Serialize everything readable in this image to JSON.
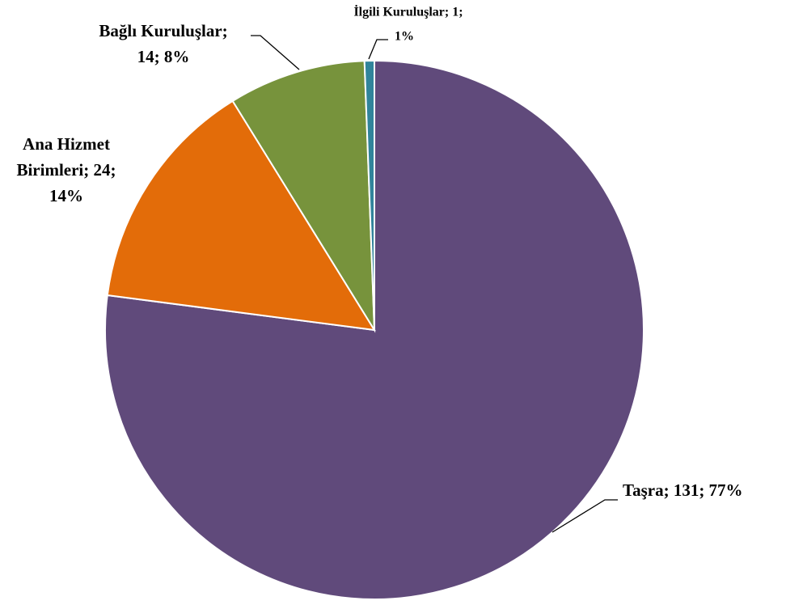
{
  "chart_data": {
    "type": "pie",
    "values": [
      131,
      24,
      14,
      1
    ],
    "colors": [
      "#604a7b",
      "#e36c09",
      "#77933c",
      "#31849b"
    ],
    "value_labels": [
      [
        "Taşra; 131; 77%"
      ],
      [
        "Ana Hizmet",
        "Birimleri; 24;",
        "14%"
      ],
      [
        "Bağlı Kuruluşlar;",
        "14; 8%"
      ],
      [
        "İlgili Kuruluşlar; 1;",
        "1%"
      ]
    ],
    "start_angle": 0,
    "direction": "clockwise"
  }
}
